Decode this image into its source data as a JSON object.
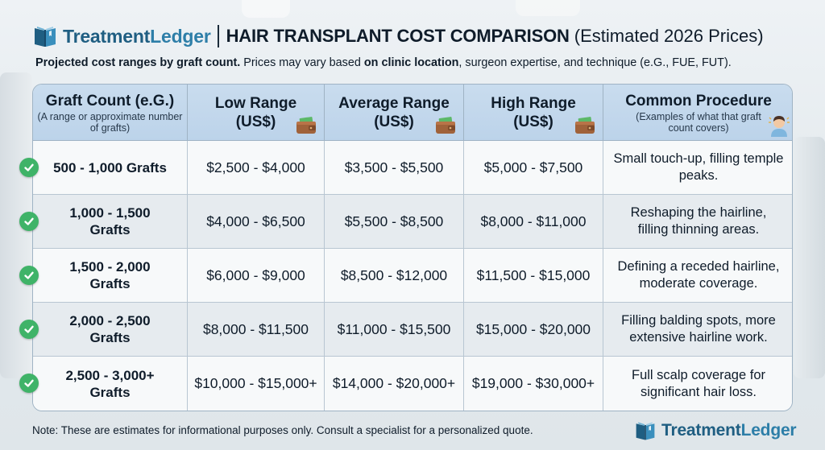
{
  "header": {
    "brand_part1": "Treatment",
    "brand_part2": "Ledger",
    "title_bold": "HAIR TRANSPLANT COST COMPARISON",
    "title_light": "(Estimated 2026 Prices)"
  },
  "subtitle": {
    "part1_bold": "Projected cost ranges by graft count.",
    "part2": " Prices may vary based ",
    "part3_bold": "on clinic location",
    "part4": ", surgeon expertise, and technique (e.G., FUE, FUT)."
  },
  "table": {
    "columns": [
      {
        "title": "Graft Count (e.G.)",
        "subtitle": "(A range or approximate number of grafts)"
      },
      {
        "title_line1": "Low Range",
        "title_line2": "(US$)"
      },
      {
        "title_line1": "Average Range",
        "title_line2": "(US$)"
      },
      {
        "title_line1": "High Range",
        "title_line2": "(US$)"
      },
      {
        "title": "Common Procedure",
        "subtitle": "(Examples of what that graft count covers)"
      }
    ],
    "rows": [
      {
        "graft": "500 - 1,000 Grafts",
        "low": "$2,500 - $4,000",
        "avg": "$3,500 - $5,500",
        "high": "$5,000 - $7,500",
        "procedure": "Small touch-up, filling temple peaks."
      },
      {
        "graft": "1,000 - 1,500 Grafts",
        "low": "$4,000 - $6,500",
        "avg": "$5,500 - $8,500",
        "high": "$8,000 - $11,000",
        "procedure": "Reshaping the hairline, filling thinning areas."
      },
      {
        "graft": "1,500 - 2,000 Grafts",
        "low": "$6,000 - $9,000",
        "avg": "$8,500 - $12,000",
        "high": "$11,500 - $15,000",
        "procedure": "Defining a receded hairline, moderate coverage."
      },
      {
        "graft": "2,000 - 2,500 Grafts",
        "low": "$8,000 - $11,500",
        "avg": "$11,000 - $15,500",
        "high": "$15,000 - $20,000",
        "procedure": "Filling balding spots, more extensive hairline work."
      },
      {
        "graft": "2,500 - 3,000+ Grafts",
        "low": "$10,000 - $15,000+",
        "avg": "$14,000 - $20,000+",
        "high": "$19,000 - $30,000+",
        "procedure": "Full scalp coverage for significant hair loss."
      }
    ]
  },
  "note": "Note: These are estimates for informational purposes only. Consult a specialist for a personalized quote.",
  "icons": {
    "logo": "book-logo-icon",
    "wallet": "wallet-icon",
    "person": "person-icon",
    "check": "check-circle-icon"
  },
  "colors": {
    "brand_dark": "#1f5e82",
    "brand_light": "#2d7ea8",
    "header_fill": "#c9dcee",
    "check_green": "#3fb368"
  }
}
